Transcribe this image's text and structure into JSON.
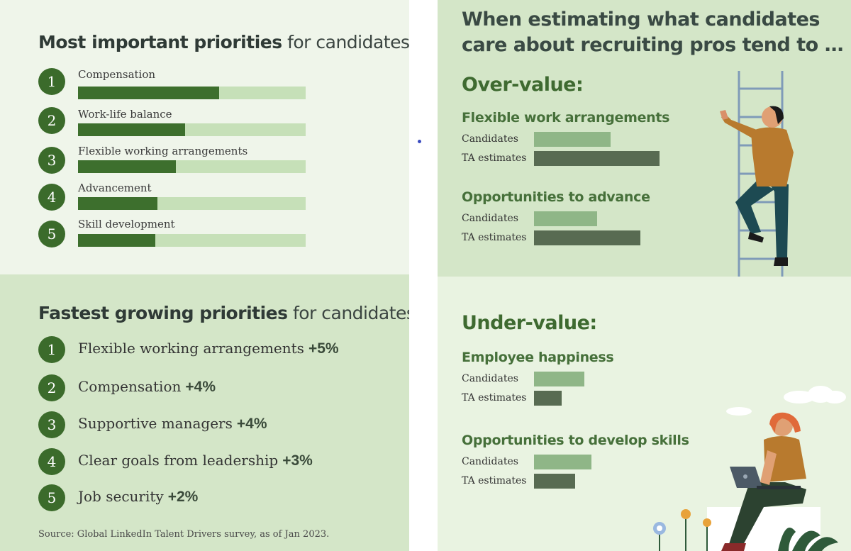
{
  "most_important": {
    "title_bold": "Most important priorities",
    "title_rest": "for candidates:",
    "items": [
      {
        "rank": "1",
        "label": "Compensation",
        "share": 0.62
      },
      {
        "rank": "2",
        "label": "Work-life balance",
        "share": 0.47
      },
      {
        "rank": "3",
        "label": "Flexible working arrangements",
        "share": 0.43
      },
      {
        "rank": "4",
        "label": "Advancement",
        "share": 0.35
      },
      {
        "rank": "5",
        "label": "Skill development",
        "share": 0.34
      }
    ]
  },
  "fastest_growing": {
    "title_bold": "Fastest growing priorities",
    "title_rest": "for candidates:",
    "items": [
      {
        "rank": "1",
        "label": "Flexible working arrangements",
        "change": "+5%"
      },
      {
        "rank": "2",
        "label": "Compensation",
        "change": "+4%"
      },
      {
        "rank": "3",
        "label": "Supportive managers",
        "change": "+4%"
      },
      {
        "rank": "4",
        "label": "Clear goals from leadership",
        "change": "+3%"
      },
      {
        "rank": "5",
        "label": "Job security",
        "change": "+2%"
      }
    ],
    "source": "Source: Global LinkedIn Talent Drivers survey, as of Jan 2023."
  },
  "estimates": {
    "title_line1": "When estimating what candidates",
    "title_line2": "care about recruiting pros tend to …",
    "row_label_candidates": "Candidates",
    "row_label_ta": "TA estimates",
    "over": {
      "heading": "Over-value:",
      "groups": [
        {
          "name": "Flexible work arrangements",
          "candidates": 0.61,
          "ta": 1.0
        },
        {
          "name": "Opportunities to advance",
          "candidates": 0.5,
          "ta": 0.85
        }
      ]
    },
    "under": {
      "heading": "Under-value:",
      "groups": [
        {
          "name": "Employee happiness",
          "candidates": 0.4,
          "ta": 0.22
        },
        {
          "name": "Opportunities to develop skills",
          "candidates": 0.46,
          "ta": 0.33
        }
      ]
    }
  },
  "colors": {
    "dark_green": "#3d6f2d",
    "light_green_track": "#c6e0b8",
    "candidates_bar": "#8fb687",
    "ta_bar": "#586b52"
  }
}
